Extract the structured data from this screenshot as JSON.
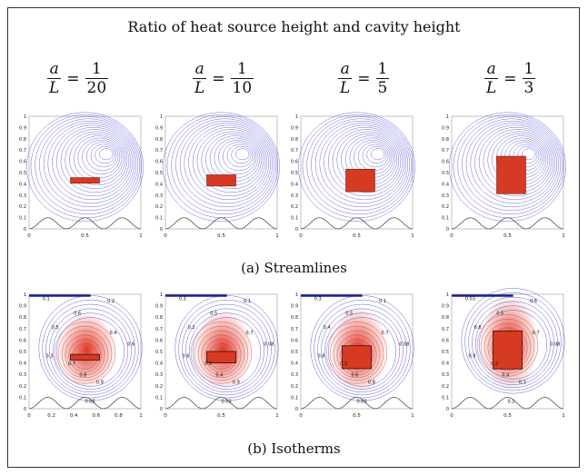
{
  "title": "Ratio of heat source height and cavity height",
  "ratios": [
    {
      "lhs_num": "a",
      "lhs_den": "L",
      "num": "1",
      "den": "20"
    },
    {
      "lhs_num": "a",
      "lhs_den": "L",
      "num": "1",
      "den": "10"
    },
    {
      "lhs_num": "a",
      "lhs_den": "L",
      "num": "1",
      "den": "5"
    },
    {
      "lhs_num": "a",
      "lhs_den": "L",
      "num": "1",
      "den": "3"
    }
  ],
  "caption_streamlines": "(a) Streamlines",
  "caption_isotherms": "(b) Isotherms",
  "streamline_plots": {
    "y_ticks": [
      "0",
      "0.1",
      "0.2",
      "0.3",
      "0.4",
      "0.5",
      "0.6",
      "0.7",
      "0.8",
      "0.9",
      "1"
    ],
    "x_ticks": [
      "0",
      "0.5",
      "1"
    ],
    "source_heights": [
      0.05,
      0.1,
      0.2,
      0.333
    ]
  },
  "isotherm_plots": {
    "y_ticks": [
      "0",
      "0.1",
      "0.2",
      "0.3",
      "0.4",
      "0.5",
      "0.6",
      "0.7",
      "0.8",
      "0.9",
      "1"
    ],
    "x_ticks_first": [
      "0",
      "0.2",
      "0.4",
      "0.6",
      "0.8",
      "1"
    ],
    "x_ticks": [
      "0",
      "0.5",
      "1"
    ],
    "contour_labels": [
      [
        "0.1",
        "0.2",
        "0.5",
        "0.6",
        "0.4",
        "0.3",
        "0.8",
        "0.9",
        "0.7",
        "0.6",
        "0.05"
      ],
      [
        "0.3",
        "0.1",
        "0.2",
        "0.5",
        "0.7",
        "0.6",
        "0.4",
        "0.9",
        "0.8",
        "0.08",
        "0.03"
      ],
      [
        "0.3",
        "0.1",
        "0.4",
        "0.5",
        "0.7",
        "0.8",
        "0.6",
        "0.9",
        "0.3",
        "0.08",
        "0.03"
      ],
      [
        "0.03",
        "0.6",
        "0.8",
        "0.5",
        "0.7",
        "0.9",
        "0.4",
        "0.3",
        "0.2",
        "0.08",
        "0.1"
      ]
    ]
  },
  "colors": {
    "line": "#3a3ad0",
    "source": "#d63a22",
    "hot": "#e02a1a",
    "floor": "#555555"
  }
}
